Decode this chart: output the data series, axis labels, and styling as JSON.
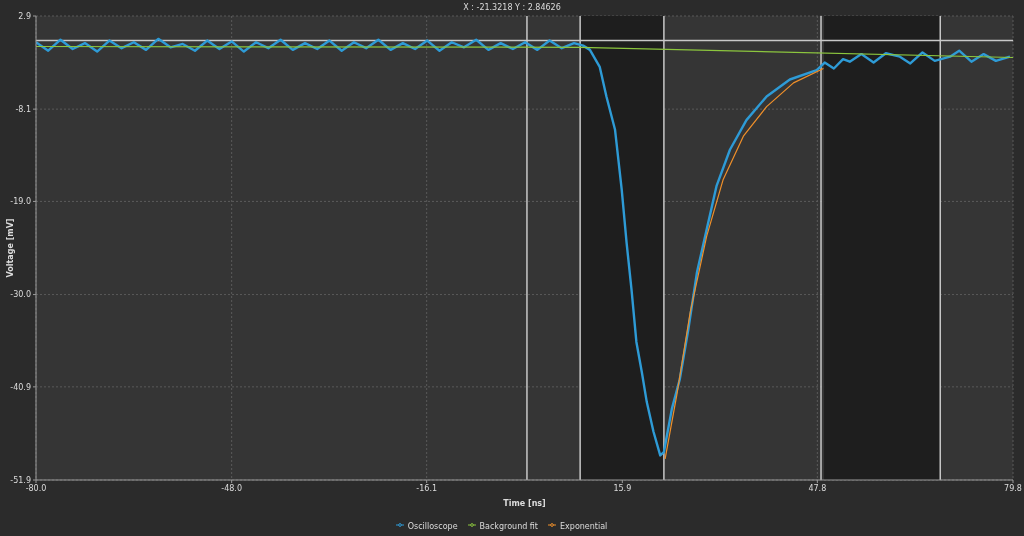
{
  "chart_data": {
    "type": "line",
    "title": "X : -21.3218 Y : 2.84626",
    "xlabel": "Time [ns]",
    "ylabel": "Voltage [mV]",
    "xlim": [
      -80,
      79.8
    ],
    "xticks": [
      {
        "value": -80,
        "label": "-80.0"
      },
      {
        "value": -48,
        "label": "-48.0"
      },
      -16.1,
      15.9,
      47.8,
      79.8
    ],
    "ylim": [
      -51.9,
      2.9
    ],
    "yticks": [
      -51.9,
      {
        "value": -40.9,
        "label": "-40.9"
      },
      {
        "value": -30,
        "label": "-30.0"
      },
      {
        "value": -19,
        "label": "-19.0"
      },
      -8.1,
      2.9
    ],
    "grid": true,
    "legend": "bottom",
    "marker": "none",
    "line_style": "solid",
    "bands": [
      {
        "axis": "x",
        "from": 9,
        "to": 22.7,
        "color": "#1e1e1e"
      },
      {
        "axis": "x",
        "from": 48.9,
        "to": 67.9,
        "color": "#1e1e1e"
      }
    ],
    "ref_lines": [
      {
        "axis": "x",
        "value": 0.3,
        "color": "#c8c8c8"
      },
      {
        "axis": "x",
        "value": 9,
        "color": "#c8c8c8"
      },
      {
        "axis": "x",
        "value": 22.7,
        "color": "#c8c8c8"
      },
      {
        "axis": "x",
        "value": 48.4,
        "color": "#c8c8c8"
      },
      {
        "axis": "x",
        "value": 67.9,
        "color": "#c8c8c8"
      },
      {
        "axis": "y",
        "value": 0,
        "color": "#c8c8c8"
      }
    ],
    "series": [
      {
        "name": "Oscilloscope",
        "color": "#2e9bd6",
        "x": [
          -80,
          -78,
          -76,
          -74,
          -72,
          -70,
          -68,
          -66,
          -64,
          -62,
          -60,
          -58,
          -56,
          -54,
          -52,
          -50,
          -48,
          -46,
          -44,
          -42,
          -40,
          -38,
          -36,
          -34,
          -32,
          -30,
          -28,
          -26,
          -24,
          -22,
          -20,
          -18,
          -16,
          -14,
          -12,
          -10,
          -8,
          -6,
          -4,
          -2,
          0,
          2,
          4,
          6,
          8,
          9.5,
          10.6,
          12.2,
          13.3,
          14.7,
          15.8,
          16.6,
          17.4,
          18.2,
          19.1,
          19.9,
          21,
          22.1,
          22.7,
          24,
          25.3,
          26.7,
          28.1,
          29.7,
          31.3,
          33.5,
          36.2,
          39.5,
          43.3,
          47.7,
          49,
          50.5,
          52,
          53.1,
          55,
          57,
          59,
          61.3,
          63,
          65,
          67,
          69.5,
          71,
          73,
          75,
          77,
          79.3
        ],
        "values": [
          -0.2,
          -1.2,
          0.1,
          -1.0,
          -0.3,
          -1.3,
          0,
          -0.9,
          -0.2,
          -1.1,
          0.2,
          -0.8,
          -0.4,
          -1.2,
          0,
          -1.0,
          -0.1,
          -1.3,
          -0.2,
          -0.9,
          0.1,
          -1.1,
          -0.3,
          -1.0,
          0,
          -1.2,
          -0.2,
          -0.9,
          0.1,
          -1.1,
          -0.3,
          -1.0,
          0,
          -1.2,
          -0.2,
          -0.8,
          0.1,
          -1.1,
          -0.3,
          -1.0,
          -0.2,
          -1.1,
          0,
          -0.9,
          -0.3,
          -0.6,
          -1.1,
          -3.1,
          -6.6,
          -10.5,
          -17.6,
          -23.9,
          -29.4,
          -35.6,
          -39.2,
          -42.7,
          -46.2,
          -49.0,
          -48.6,
          -43.5,
          -40.0,
          -34.1,
          -27.4,
          -22.3,
          -17.2,
          -12.9,
          -9.4,
          -6.6,
          -4.6,
          -3.5,
          -2.6,
          -3.3,
          -2.2,
          -2.5,
          -1.6,
          -2.6,
          -1.5,
          -1.9,
          -2.7,
          -1.4,
          -2.4,
          -1.9,
          -1.2,
          -2.5,
          -1.6,
          -2.4,
          -1.9
        ]
      },
      {
        "name": "Background fit",
        "color": "#8cc63e",
        "x": [
          -80,
          9,
          79.8
        ],
        "values": [
          -0.7,
          -0.8,
          -2.0
        ]
      },
      {
        "name": "Exponential",
        "color": "#f0902a",
        "x": [
          22.9,
          24.8,
          27,
          29.7,
          32.4,
          35.7,
          39.5,
          43.9,
          48.8
        ],
        "values": [
          -49.4,
          -41.9,
          -32.1,
          -23.1,
          -16.4,
          -11.3,
          -7.8,
          -5.0,
          -3.3
        ]
      }
    ]
  }
}
